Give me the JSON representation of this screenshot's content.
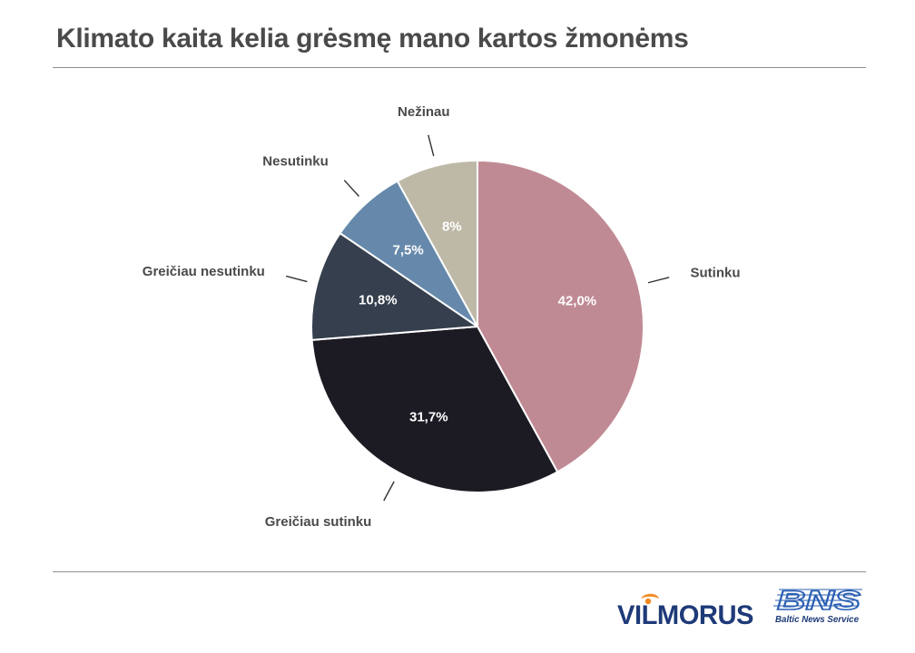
{
  "title": "Klimato kaita kelia grėsmę mano kartos žmonėms",
  "chart_data": {
    "type": "pie",
    "title": "Klimato kaita kelia grėsmę mano kartos žmonėms",
    "start_angle_deg": 0,
    "direction": "clockwise",
    "slices": [
      {
        "label": "Sutinku",
        "value": 42.0,
        "value_label": "42,0%",
        "color": "#c08a94",
        "text_color": "#ffffff"
      },
      {
        "label": "Greičiau sutinku",
        "value": 31.7,
        "value_label": "31,7%",
        "color": "#1c1b24",
        "text_color": "#ffffff"
      },
      {
        "label": "Greičiau nesutinku",
        "value": 10.8,
        "value_label": "10,8%",
        "color": "#363f4d",
        "text_color": "#ffffff"
      },
      {
        "label": "Nesutinku",
        "value": 7.5,
        "value_label": "7,5%",
        "color": "#6689ab",
        "text_color": "#ffffff"
      },
      {
        "label": "Nežinau",
        "value": 8,
        "value_label": "8%",
        "color": "#beb9a7",
        "text_color": "#ffffff"
      }
    ],
    "label_color": "#4a4a4a",
    "leader_color": "#333333"
  },
  "logos": {
    "vilmorus": "VILMORUS",
    "bns": "BNS",
    "bns_tagline": "Baltic News Service"
  }
}
